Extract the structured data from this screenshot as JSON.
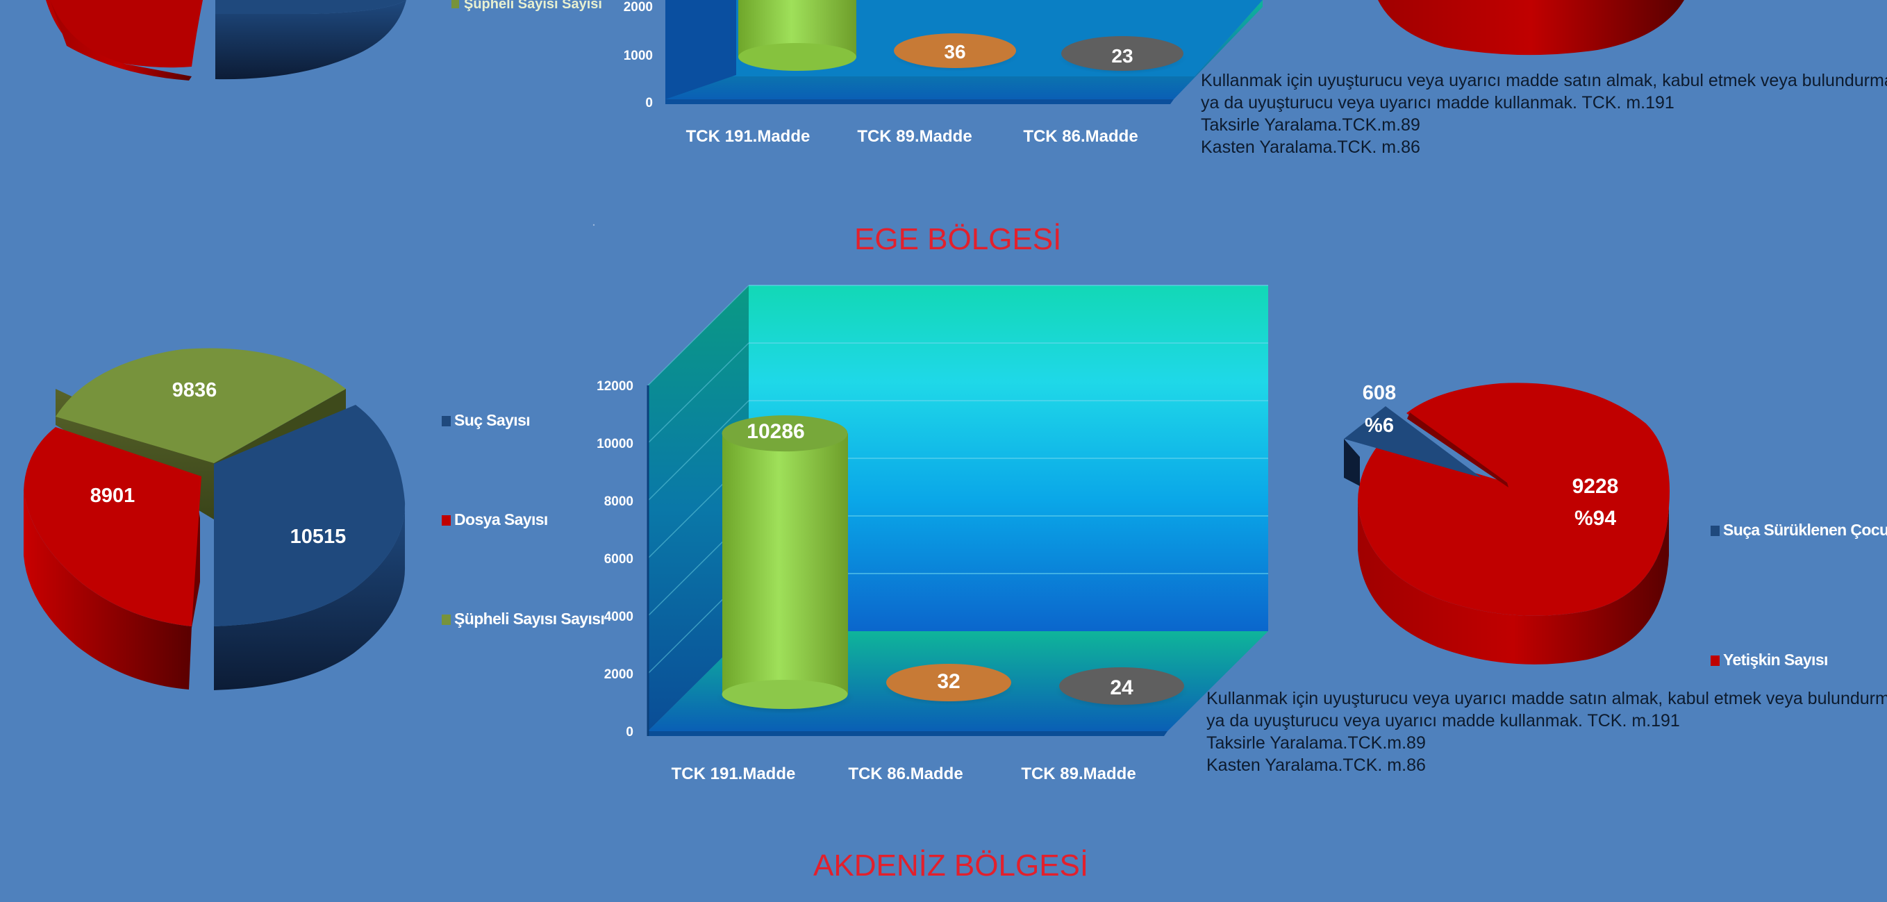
{
  "regions": {
    "ege_title": "EGE BÖLGESİ",
    "akdeniz_title": "AKDENİZ BÖLGESİ"
  },
  "colors": {
    "background": "#4f81bd",
    "title_red": "#e2202c",
    "suc_blue": "#1f497d",
    "dosya_red": "#c00000",
    "supheli_olive": "#77933c",
    "cylinder_green": "#92d050",
    "disc_orange": "#c77a36",
    "disc_gray": "#5f5f5f"
  },
  "legends": {
    "left_pie": [
      {
        "label": "Suç Sayısı",
        "color": "#1f497d"
      },
      {
        "label": "Dosya Sayısı",
        "color": "#c00000"
      },
      {
        "label": "Şüpheli Sayısı Sayısı",
        "color": "#77933c"
      }
    ],
    "right_pie": [
      {
        "label": "Suça Sürüklenen Çocuk",
        "color": "#1f497d"
      },
      {
        "label": "Yetişkin Sayısı",
        "color": "#c00000"
      }
    ]
  },
  "notes": {
    "top": [
      "Kullanmak için uyuşturucu veya uyarıcı madde satın almak, kabul etmek veya bulundurmak",
      "ya da uyuşturucu veya uyarıcı madde kullanmak. TCK. m.191",
      "Taksirle Yaralama.TCK.m.89",
      "Kasten Yaralama.TCK. m.86"
    ],
    "ege": [
      "Kullanmak için uyuşturucu veya uyarıcı madde satın almak, kabul etmek veya bulundurmak",
      "ya da uyuşturucu veya uyarıcı madde kullanmak. TCK. m.191",
      "Taksirle Yaralama.TCK.m.89",
      "Kasten Yaralama.TCK. m.86"
    ]
  },
  "chart_data": [
    {
      "id": "top_bar_partial",
      "type": "bar",
      "categories": [
        "TCK 191.Madde",
        "TCK 89.Madde",
        "TCK 86.Madde"
      ],
      "values": [
        null,
        36,
        23
      ],
      "value_labels": [
        "",
        "36",
        "23"
      ],
      "yticks": [
        "2000",
        "1000",
        "0"
      ],
      "colors": [
        "#92d050",
        "#c77a36",
        "#5f5f5f"
      ]
    },
    {
      "id": "ege_pie_counts",
      "type": "pie",
      "labels": [
        "Suç Sayısı",
        "Dosya Sayısı",
        "Şüpheli Sayısı Sayısı"
      ],
      "values": [
        10515,
        8901,
        9836
      ],
      "value_labels": [
        "10515",
        "8901",
        "9836"
      ],
      "colors": [
        "#1f497d",
        "#c00000",
        "#77933c"
      ]
    },
    {
      "id": "ege_bar",
      "type": "bar",
      "categories": [
        "TCK 191.Madde",
        "TCK 86.Madde",
        "TCK 89.Madde"
      ],
      "values": [
        10286,
        32,
        24
      ],
      "value_labels": [
        "10286",
        "32",
        "24"
      ],
      "ylim": [
        0,
        12000
      ],
      "yticks": [
        "0",
        "2000",
        "4000",
        "6000",
        "8000",
        "10000",
        "12000"
      ],
      "colors": [
        "#92d050",
        "#c77a36",
        "#5f5f5f"
      ]
    },
    {
      "id": "ege_pie_age",
      "type": "pie",
      "labels": [
        "Suça Sürüklenen Çocuk",
        "Yetişkin Sayısı"
      ],
      "values": [
        608,
        9228
      ],
      "percents": [
        6,
        94
      ],
      "value_labels": [
        "608",
        "9228"
      ],
      "percent_labels": [
        "%6",
        "%94"
      ],
      "colors": [
        "#1f497d",
        "#c00000"
      ]
    }
  ]
}
